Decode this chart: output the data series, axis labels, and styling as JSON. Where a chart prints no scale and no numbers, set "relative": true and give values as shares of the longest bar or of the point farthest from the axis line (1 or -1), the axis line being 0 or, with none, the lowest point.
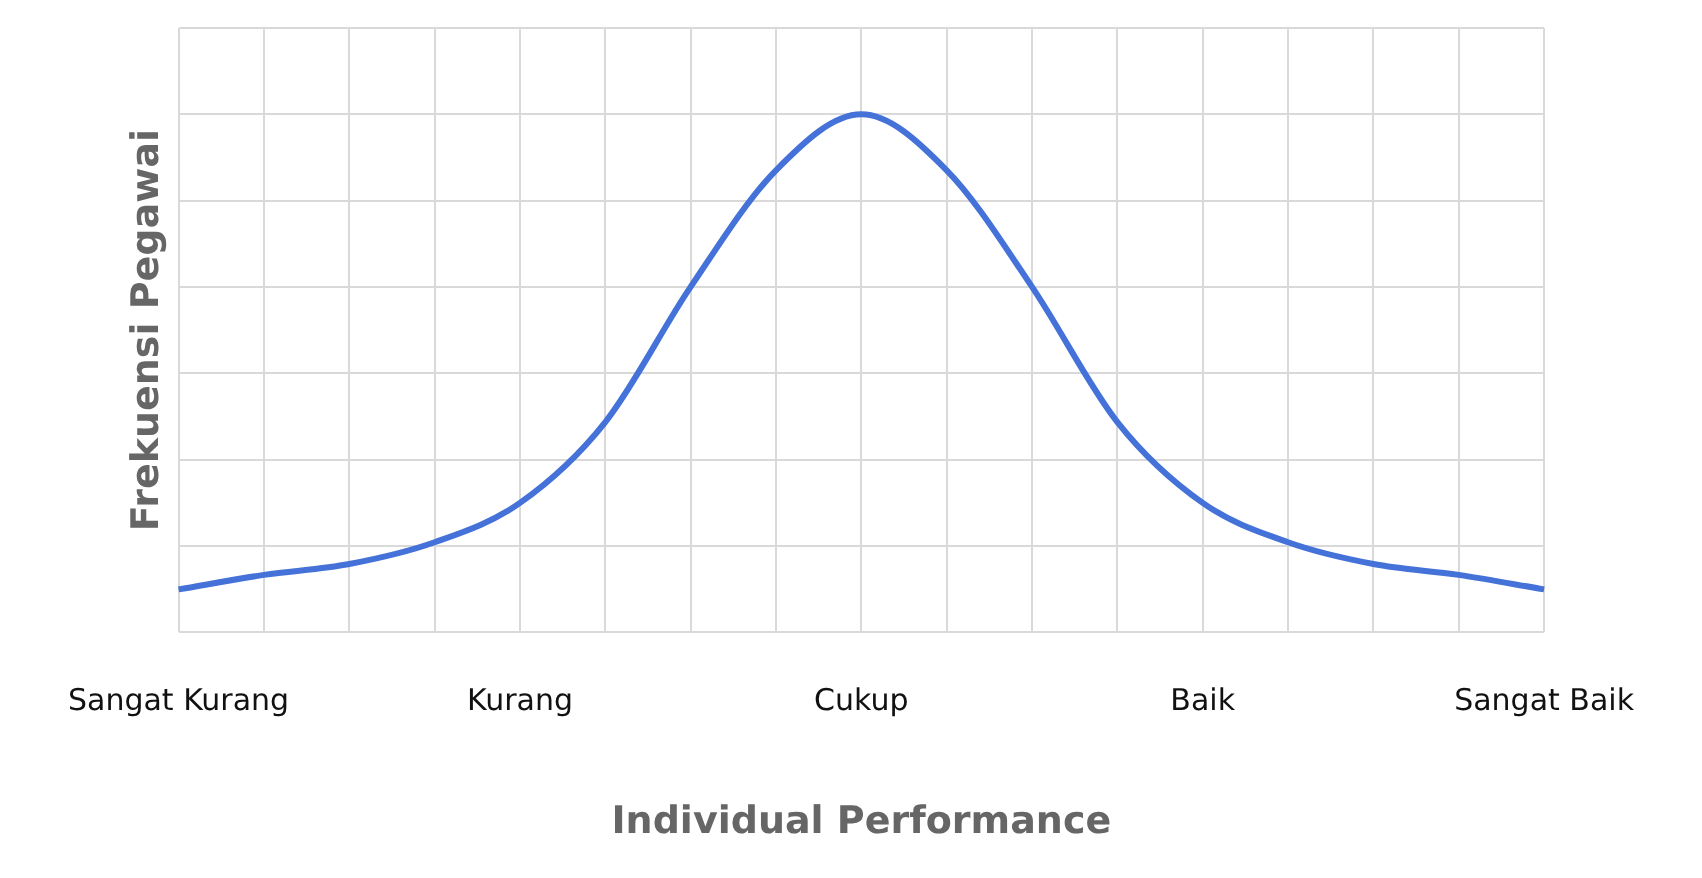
{
  "chart_data": {
    "type": "line",
    "relative": true,
    "xlabel": "Individual Performance",
    "ylabel": "Frekuensi Pegawai",
    "categories": [
      "Sangat Kurang",
      null,
      null,
      null,
      "Kurang",
      null,
      null,
      null,
      "Cukup",
      null,
      null,
      null,
      "Baik",
      null,
      null,
      null,
      "Sangat Baik"
    ],
    "series": [
      {
        "color": "#4472d8",
        "values": [
          0.083,
          0.111,
          0.132,
          0.174,
          0.25,
          0.406,
          0.667,
          0.892,
          1,
          0.892,
          0.667,
          0.406,
          0.25,
          0.174,
          0.132,
          0.111,
          0.083
        ]
      }
    ],
    "grid": true,
    "legend": false,
    "marker": "none",
    "line_style": "solid"
  }
}
